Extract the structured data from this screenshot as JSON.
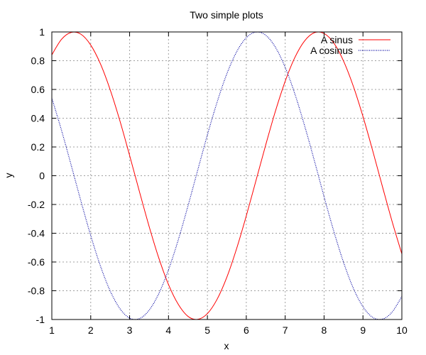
{
  "chart_data": {
    "type": "line",
    "title": "Two simple plots",
    "xlabel": "x",
    "ylabel": "y",
    "xlim": [
      1,
      10
    ],
    "ylim": [
      -1,
      1
    ],
    "x_ticks": [
      "1",
      "2",
      "3",
      "4",
      "5",
      "6",
      "7",
      "8",
      "9",
      "10"
    ],
    "y_ticks": [
      "1",
      "0.8",
      "0.6",
      "0.4",
      "0.2",
      "0",
      "-0.2",
      "-0.4",
      "-0.6",
      "-0.8",
      "-1"
    ],
    "grid": true,
    "legend_position": "top-right",
    "x": [
      1.0,
      1.25,
      1.5,
      1.75,
      2.0,
      2.25,
      2.5,
      2.75,
      3.0,
      3.25,
      3.5,
      3.75,
      4.0,
      4.25,
      4.5,
      4.75,
      5.0,
      5.25,
      5.5,
      5.75,
      6.0,
      6.25,
      6.5,
      6.75,
      7.0,
      7.25,
      7.5,
      7.75,
      8.0,
      8.25,
      8.5,
      8.75,
      9.0,
      9.25,
      9.5,
      9.75,
      10.0
    ],
    "series": [
      {
        "name": "A sinus",
        "color": "#ff0000",
        "style": "solid",
        "values": [
          0.841,
          0.949,
          0.997,
          0.984,
          0.909,
          0.778,
          0.598,
          0.382,
          0.141,
          -0.108,
          -0.351,
          -0.572,
          -0.757,
          -0.894,
          -0.978,
          -0.999,
          -0.959,
          -0.859,
          -0.706,
          -0.508,
          -0.279,
          -0.033,
          0.215,
          0.45,
          0.657,
          0.823,
          0.938,
          0.995,
          0.989,
          0.923,
          0.798,
          0.624,
          0.412,
          0.174,
          -0.075,
          -0.319,
          -0.544
        ]
      },
      {
        "name": "A cosinus",
        "color": "#0000a0",
        "style": "dotted",
        "values": [
          0.54,
          0.315,
          0.071,
          -0.178,
          -0.416,
          -0.628,
          -0.801,
          -0.924,
          -0.99,
          -0.994,
          -0.936,
          -0.82,
          -0.654,
          -0.447,
          -0.211,
          0.038,
          0.284,
          0.512,
          0.709,
          0.861,
          0.96,
          0.999,
          0.977,
          0.893,
          0.754,
          0.568,
          0.347,
          0.105,
          -0.146,
          -0.386,
          -0.602,
          -0.781,
          -0.911,
          -0.985,
          -0.997,
          -0.948,
          -0.839
        ]
      }
    ]
  }
}
